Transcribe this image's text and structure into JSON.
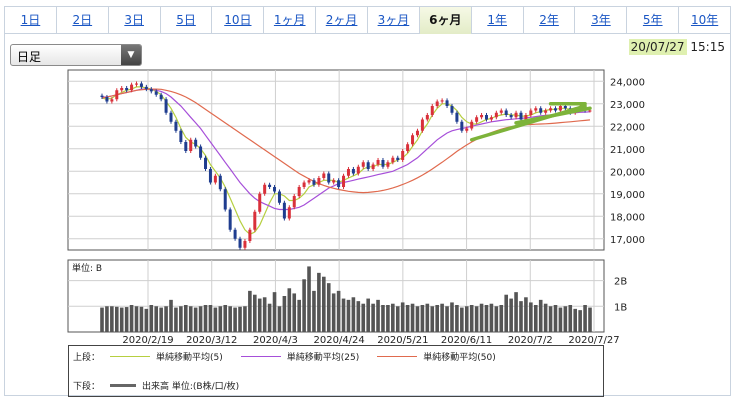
{
  "tabs": [
    "1日",
    "2日",
    "3日",
    "5日",
    "10日",
    "1ヶ月",
    "2ヶ月",
    "3ヶ月",
    "6ヶ月",
    "1年",
    "2年",
    "3年",
    "5年",
    "10年"
  ],
  "active_tab_index": 8,
  "selector": {
    "value": "日足"
  },
  "timestamp": {
    "date": "20/07/27",
    "time": "15:15"
  },
  "legend": {
    "upper_label": "上段：",
    "lower_label": "下段：",
    "items": [
      {
        "label": "単純移動平均(5)",
        "color": "#b6cf40"
      },
      {
        "label": "単純移動平均(25)",
        "color": "#a64fd9"
      },
      {
        "label": "単純移動平均(50)",
        "color": "#e06a4e"
      }
    ],
    "volume_label": "出来高 単位:(B株/口/枚)"
  },
  "chart_data": [
    {
      "type": "candlestick",
      "title": "",
      "xlabel": "",
      "ylabel": "",
      "x_tick_labels": [
        "2020/2/19",
        "2020/3/12",
        "2020/4/3",
        "2020/4/24",
        "2020/5/21",
        "2020/6/11",
        "2020/7/2",
        "2020/7/27"
      ],
      "y_tick_labels": [
        "24,000",
        "23,000",
        "22,000",
        "21,000",
        "20,000",
        "19,000",
        "18,000",
        "17,000"
      ],
      "ylim": [
        16500,
        24500
      ],
      "grid": true,
      "up_color": "#d9303a",
      "down_color": "#1f3d8f",
      "series": [
        {
          "name": "close",
          "values": [
            23300,
            23100,
            23200,
            23600,
            23700,
            23600,
            23850,
            23900,
            23750,
            23650,
            23550,
            23400,
            23200,
            22600,
            22200,
            21800,
            21300,
            20900,
            21400,
            21100,
            20600,
            20100,
            19500,
            19800,
            19200,
            18300,
            17400,
            17000,
            16600,
            16900,
            17400,
            18200,
            19000,
            19400,
            19300,
            19100,
            18600,
            17900,
            18400,
            18900,
            19300,
            19500,
            19600,
            19400,
            19700,
            19900,
            19500,
            19600,
            19300,
            19800,
            20100,
            19900,
            20200,
            20400,
            20100,
            20300,
            20500,
            20200,
            20400,
            20600,
            20500,
            20900,
            21200,
            21600,
            21800,
            22300,
            22500,
            22900,
            23100,
            23150,
            22900,
            22600,
            22200,
            21800,
            21900,
            22200,
            22400,
            22500,
            22300,
            22400,
            22600,
            22700,
            22500,
            22400,
            22600,
            22300,
            22500,
            22700,
            22800,
            22600,
            22700,
            22800,
            22700,
            22900,
            22800,
            22600,
            22750,
            22850,
            22700,
            22700
          ]
        },
        {
          "name": "単純移動平均(5)",
          "color": "#b6cf40",
          "values": [
            23250,
            23200,
            23250,
            23400,
            23500,
            23600,
            23650,
            23750,
            23750,
            23700,
            23650,
            23550,
            23400,
            23100,
            22800,
            22400,
            21900,
            21500,
            21300,
            21200,
            21000,
            20700,
            20300,
            20000,
            19700,
            19300,
            18800,
            18300,
            17800,
            17400,
            17200,
            17300,
            17600,
            18100,
            18600,
            19000,
            19000,
            18900,
            18700,
            18700,
            18800,
            19000,
            19300,
            19400,
            19500,
            19600,
            19600,
            19600,
            19500,
            19600,
            19700,
            19800,
            19900,
            20100,
            20200,
            20200,
            20300,
            20300,
            20300,
            20400,
            20500,
            20600,
            20800,
            21100,
            21400,
            21800,
            22100,
            22500,
            22800,
            23000,
            23000,
            22900,
            22700,
            22400,
            22200,
            22100,
            22100,
            22200,
            22300,
            22350,
            22450,
            22500,
            22550,
            22500,
            22500,
            22450,
            22450,
            22500,
            22600,
            22650,
            22700,
            22750,
            22750,
            22800,
            22800,
            22750,
            22750,
            22780,
            22750,
            22720
          ]
        },
        {
          "name": "単純移動平均(25)",
          "color": "#a64fd9",
          "values": [
            23300,
            23300,
            23350,
            23400,
            23450,
            23500,
            23550,
            23600,
            23650,
            23650,
            23650,
            23600,
            23550,
            23450,
            23300,
            23100,
            22900,
            22650,
            22400,
            22150,
            21900,
            21600,
            21300,
            21000,
            20700,
            20400,
            20100,
            19800,
            19500,
            19250,
            19000,
            18800,
            18650,
            18550,
            18450,
            18350,
            18300,
            18300,
            18300,
            18350,
            18400,
            18500,
            18650,
            18800,
            18950,
            19100,
            19250,
            19350,
            19450,
            19500,
            19550,
            19600,
            19650,
            19700,
            19750,
            19800,
            19850,
            19900,
            19950,
            20000,
            20100,
            20200,
            20300,
            20450,
            20600,
            20800,
            21000,
            21200,
            21400,
            21550,
            21700,
            21800,
            21850,
            21900,
            21950,
            22000,
            22050,
            22100,
            22150,
            22200,
            22230,
            22260,
            22290,
            22310,
            22330,
            22350,
            22370,
            22400,
            22430,
            22460,
            22480,
            22500,
            22520,
            22540,
            22560,
            22580,
            22600,
            22620,
            22630,
            22640
          ]
        },
        {
          "name": "単純移動平均(50)",
          "color": "#e06a4e",
          "values": [
            23250,
            23300,
            23350,
            23400,
            23450,
            23500,
            23550,
            23600,
            23620,
            23640,
            23650,
            23650,
            23640,
            23600,
            23550,
            23480,
            23400,
            23300,
            23180,
            23050,
            22900,
            22750,
            22600,
            22450,
            22300,
            22150,
            22000,
            21850,
            21700,
            21550,
            21400,
            21250,
            21100,
            20950,
            20800,
            20650,
            20500,
            20350,
            20200,
            20050,
            19900,
            19780,
            19660,
            19550,
            19450,
            19370,
            19300,
            19240,
            19190,
            19150,
            19110,
            19080,
            19060,
            19050,
            19060,
            19080,
            19110,
            19150,
            19200,
            19260,
            19330,
            19410,
            19500,
            19600,
            19710,
            19830,
            19960,
            20100,
            20250,
            20400,
            20560,
            20720,
            20880,
            21030,
            21170,
            21300,
            21420,
            21530,
            21630,
            21720,
            21800,
            21870,
            21930,
            21980,
            22020,
            22050,
            22070,
            22080,
            22090,
            22100,
            22110,
            22120,
            22140,
            22160,
            22180,
            22200,
            22220,
            22240,
            22260,
            22280
          ]
        }
      ],
      "annotations": [
        {
          "type": "trendline",
          "color": "#7db33a",
          "from": {
            "x_index": 75,
            "y": 21400
          },
          "to": {
            "x_index": 98,
            "y": 22900
          }
        },
        {
          "type": "trendline",
          "color": "#7db33a",
          "from": {
            "x_index": 84,
            "y": 22150
          },
          "to": {
            "x_index": 99,
            "y": 22800
          }
        },
        {
          "type": "trendline",
          "color": "#7db33a",
          "from": {
            "x_index": 91,
            "y": 23000
          },
          "to": {
            "x_index": 98,
            "y": 23000
          }
        }
      ]
    },
    {
      "type": "bar",
      "title": "",
      "unit_label": "単位: B",
      "y_tick_labels": [
        "2B",
        "1B"
      ],
      "ylim": [
        0,
        2.8
      ],
      "x_tick_labels": [
        "2020/2/19",
        "2020/3/12",
        "2020/4/3",
        "2020/4/24",
        "2020/5/21",
        "2020/6/11",
        "2020/7/2",
        "2020/7/27"
      ],
      "values": [
        0.95,
        1.0,
        1.0,
        0.98,
        0.95,
        0.97,
        1.05,
        1.0,
        0.98,
        0.9,
        1.05,
        1.0,
        0.95,
        1.0,
        1.25,
        0.95,
        1.0,
        1.05,
        1.0,
        0.95,
        1.0,
        1.05,
        1.05,
        0.95,
        1.0,
        1.05,
        1.0,
        0.95,
        0.98,
        1.0,
        1.6,
        1.45,
        1.3,
        1.35,
        1.1,
        1.55,
        1.0,
        1.4,
        1.7,
        1.5,
        1.25,
        2.05,
        2.55,
        1.6,
        2.3,
        2.15,
        1.9,
        1.5,
        1.6,
        1.3,
        1.25,
        1.35,
        1.2,
        1.1,
        1.3,
        1.1,
        1.25,
        1.05,
        1.05,
        1.1,
        1.0,
        1.15,
        1.05,
        1.1,
        1.0,
        1.05,
        1.1,
        1.0,
        1.05,
        1.1,
        1.0,
        1.15,
        1.05,
        0.95,
        1.0,
        1.05,
        1.0,
        1.1,
        1.05,
        1.1,
        1.0,
        1.05,
        1.45,
        1.3,
        1.55,
        1.2,
        1.35,
        1.15,
        1.05,
        1.25,
        1.1,
        1.0,
        1.05,
        0.95,
        1.0,
        1.05,
        0.9,
        0.85,
        1.05,
        0.95
      ]
    }
  ]
}
